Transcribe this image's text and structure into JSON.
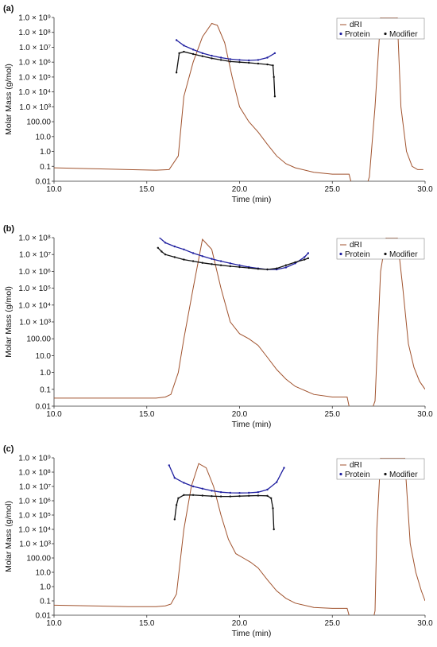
{
  "chart_data": [
    {
      "type": "line",
      "panel_label": "(a)",
      "xlabel": "Time (min)",
      "ylabel": "Molar Mass (g/mol)",
      "xlim": [
        10.0,
        30.0
      ],
      "ylim": [
        0.01,
        1000000000
      ],
      "yscale": "log",
      "x_ticks": [
        10.0,
        15.0,
        20.0,
        25.0,
        30.0
      ],
      "x_tick_labels": [
        "10.0",
        "15.0",
        "20.0",
        "25.0",
        "30.0"
      ],
      "y_ticks": [
        1000000000,
        100000000,
        10000000,
        1000000,
        100000,
        10000,
        1000,
        100,
        10,
        1,
        0.1,
        0.01
      ],
      "y_tick_labels": [
        "1.0 × 10⁹",
        "1.0 × 10⁸",
        "1.0 × 10⁷",
        "1.0 × 10⁶",
        "1.0 × 10⁵",
        "1.0 × 10⁴",
        "1.0 × 10³",
        "100.00",
        "10.0",
        "1.0",
        "0.1",
        "0.01"
      ],
      "legend": [
        "dRI",
        "Protein",
        "Modifier"
      ],
      "legend_position": "top-right",
      "series": [
        {
          "name": "dRI",
          "color": "#a0522d",
          "style": "line",
          "x": [
            10.0,
            12.0,
            14.0,
            15.5,
            16.2,
            16.7,
            17.0,
            17.5,
            18.0,
            18.5,
            18.8,
            19.2,
            19.6,
            20.0,
            20.5,
            21.0,
            21.5,
            22.0,
            22.5,
            23.0,
            24.0,
            25.0,
            25.9,
            26.0,
            26.1,
            26.85,
            27.0,
            27.3,
            27.6,
            27.9,
            28.15,
            28.3,
            28.5,
            28.7,
            29.0,
            29.3,
            29.6,
            29.9
          ],
          "y": [
            0.08,
            0.07,
            0.06,
            0.055,
            0.06,
            0.5,
            5000,
            1000000,
            50000000,
            400000000,
            300000000,
            20000000,
            100000,
            1000,
            100,
            20,
            3,
            0.5,
            0.15,
            0.08,
            0.04,
            0.03,
            0.03,
            0.01,
            0.005,
            0.005,
            0.02,
            1000,
            1000000000,
            1000000000,
            1000000000,
            1000000000,
            1000000000,
            1000,
            1,
            0.1,
            0.06,
            0.06
          ]
        },
        {
          "name": "Protein",
          "color": "#2020a0",
          "style": "points",
          "x": [
            16.6,
            17.0,
            17.5,
            18.0,
            18.5,
            19.0,
            19.5,
            20.0,
            20.5,
            21.0,
            21.5,
            21.9
          ],
          "y": [
            30000000,
            13000000,
            7000000,
            4000000,
            2700000,
            2000000,
            1600000,
            1400000,
            1300000,
            1400000,
            2000000,
            4000000
          ]
        },
        {
          "name": "Modifier",
          "color": "#111111",
          "style": "points",
          "x": [
            16.6,
            16.75,
            17.0,
            17.5,
            18.0,
            18.5,
            19.0,
            19.5,
            20.0,
            20.5,
            21.0,
            21.5,
            21.8,
            21.85,
            21.9
          ],
          "y": [
            200000,
            4000000,
            5000000,
            3500000,
            2500000,
            1800000,
            1400000,
            1100000,
            1000000,
            900000,
            800000,
            700000,
            600000,
            100000,
            5000
          ]
        }
      ]
    },
    {
      "type": "line",
      "panel_label": "(b)",
      "xlabel": "Time (min)",
      "ylabel": "Molar Mass (g/mol)",
      "xlim": [
        10.0,
        30.0
      ],
      "ylim": [
        0.01,
        100000000
      ],
      "yscale": "log",
      "x_ticks": [
        10.0,
        15.0,
        20.0,
        25.0,
        30.0
      ],
      "x_tick_labels": [
        "10.0",
        "15.0",
        "20.0",
        "25.0",
        "30.0"
      ],
      "y_ticks": [
        100000000,
        10000000,
        1000000,
        100000,
        10000,
        1000,
        100,
        10,
        1,
        0.1,
        0.01
      ],
      "y_tick_labels": [
        "1.0 × 10⁸",
        "1.0 × 10⁷",
        "1.0 × 10⁶",
        "1.0 × 10⁵",
        "1.0 × 10⁴",
        "1.0 × 10³",
        "100.00",
        "10.0",
        "1.0",
        "0.1",
        "0.01"
      ],
      "legend": [
        "dRI",
        "Protein",
        "Modifier"
      ],
      "legend_position": "top-right",
      "series": [
        {
          "name": "dRI",
          "color": "#a0522d",
          "style": "line",
          "x": [
            10.0,
            12.0,
            14.0,
            15.5,
            16.0,
            16.3,
            16.7,
            17.0,
            17.5,
            18.0,
            18.5,
            19.0,
            19.5,
            20.0,
            20.5,
            21.0,
            21.5,
            22.0,
            22.5,
            23.0,
            24.0,
            25.0,
            25.8,
            25.9,
            26.0,
            27.1,
            27.3,
            27.6,
            27.9,
            28.2,
            28.5,
            28.8,
            29.1,
            29.4,
            29.7,
            30.0
          ],
          "y": [
            0.03,
            0.03,
            0.03,
            0.03,
            0.035,
            0.05,
            1,
            100,
            100000,
            80000000,
            20000000,
            100000,
            1000,
            200,
            100,
            40,
            8,
            1.5,
            0.4,
            0.15,
            0.05,
            0.035,
            0.035,
            0.01,
            0.005,
            0.005,
            0.02,
            1000000,
            100000000,
            100000000,
            100000000,
            100000,
            50,
            2,
            0.3,
            0.1
          ]
        },
        {
          "name": "Protein",
          "color": "#2020a0",
          "style": "points",
          "x": [
            15.6,
            16.0,
            16.5,
            17.0,
            17.5,
            18.0,
            18.5,
            19.0,
            19.5,
            20.0,
            20.5,
            21.0,
            21.5,
            22.0,
            22.5,
            23.0,
            23.5,
            23.7
          ],
          "y": [
            120000000,
            50000000,
            30000000,
            20000000,
            12000000,
            8000000,
            5500000,
            4000000,
            3000000,
            2300000,
            1800000,
            1500000,
            1300000,
            1300000,
            1700000,
            3000000,
            7000000,
            12000000
          ]
        },
        {
          "name": "Modifier",
          "color": "#111111",
          "style": "points",
          "x": [
            15.6,
            15.8,
            16.0,
            16.5,
            17.0,
            17.5,
            18.0,
            18.5,
            19.0,
            19.5,
            20.0,
            20.5,
            21.0,
            21.5,
            22.0,
            22.5,
            23.0,
            23.5,
            23.7
          ],
          "y": [
            25000000,
            15000000,
            10000000,
            7000000,
            5000000,
            4000000,
            3200000,
            2700000,
            2300000,
            2000000,
            1800000,
            1600000,
            1400000,
            1300000,
            1500000,
            2300000,
            3500000,
            5000000,
            6000000
          ]
        }
      ]
    },
    {
      "type": "line",
      "panel_label": "(c)",
      "xlabel": "Time (min)",
      "ylabel": "Molar Mass (g/mol)",
      "xlim": [
        10.0,
        30.0
      ],
      "ylim": [
        0.01,
        1000000000
      ],
      "yscale": "log",
      "x_ticks": [
        10.0,
        15.0,
        20.0,
        25.0,
        30.0
      ],
      "x_tick_labels": [
        "10.0",
        "15.0",
        "20.0",
        "25.0",
        "30.0"
      ],
      "y_ticks": [
        1000000000,
        100000000,
        10000000,
        1000000,
        100000,
        10000,
        1000,
        100,
        10,
        1,
        0.1,
        0.01
      ],
      "y_tick_labels": [
        "1.0 × 10⁹",
        "1.0 × 10⁸",
        "1.0 × 10⁷",
        "1.0 × 10⁶",
        "1.0 × 10⁵",
        "1.0 × 10⁴",
        "1.0 × 10³",
        "100.00",
        "10.0",
        "1.0",
        "0.1",
        "0.01"
      ],
      "legend": [
        "dRI",
        "Protein",
        "Modifier"
      ],
      "legend_position": "top-right",
      "series": [
        {
          "name": "dRI",
          "color": "#a0522d",
          "style": "line",
          "x": [
            10.0,
            12.0,
            14.0,
            15.5,
            16.0,
            16.3,
            16.6,
            17.0,
            17.4,
            17.8,
            18.2,
            18.6,
            19.0,
            19.4,
            19.8,
            20.2,
            20.6,
            21.0,
            21.5,
            22.0,
            22.5,
            23.0,
            24.0,
            25.0,
            25.8,
            25.9,
            26.0,
            27.2,
            27.3,
            27.4,
            27.6,
            28.0,
            28.3,
            28.6,
            28.9,
            29.2,
            29.5,
            29.8,
            30.0
          ],
          "y": [
            0.05,
            0.045,
            0.04,
            0.04,
            0.045,
            0.06,
            0.3,
            10000,
            10000000,
            400000000,
            200000000,
            10000000,
            100000,
            2000,
            200,
            100,
            50,
            20,
            3,
            0.5,
            0.15,
            0.07,
            0.035,
            0.03,
            0.03,
            0.01,
            0.005,
            0.005,
            0.02,
            10000,
            1000000000,
            1000000000,
            1000000000,
            1000000000,
            1000000000,
            1000,
            10,
            0.5,
            0.1
          ]
        },
        {
          "name": "Protein",
          "color": "#2020a0",
          "style": "points",
          "x": [
            16.2,
            16.5,
            17.0,
            17.5,
            18.0,
            18.5,
            19.0,
            19.5,
            20.0,
            20.5,
            21.0,
            21.5,
            22.0,
            22.4
          ],
          "y": [
            300000000,
            40000000,
            18000000,
            10000000,
            7000000,
            5000000,
            4000000,
            3600000,
            3500000,
            3600000,
            4000000,
            6000000,
            20000000,
            200000000
          ]
        },
        {
          "name": "Modifier",
          "color": "#111111",
          "style": "points",
          "x": [
            16.5,
            16.6,
            16.7,
            17.0,
            17.5,
            18.0,
            18.5,
            19.0,
            19.5,
            20.0,
            20.5,
            21.0,
            21.5,
            21.7,
            21.8,
            21.85
          ],
          "y": [
            50000,
            500000,
            1500000,
            2500000,
            2500000,
            2300000,
            2100000,
            2000000,
            2000000,
            2100000,
            2200000,
            2300000,
            2200000,
            1500000,
            300000,
            10000
          ]
        }
      ]
    }
  ]
}
